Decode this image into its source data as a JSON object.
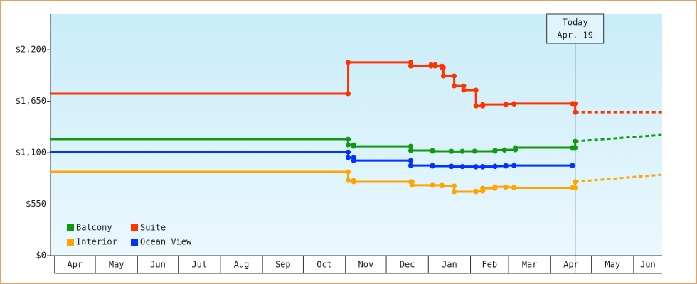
{
  "chart_data": {
    "type": "step-line",
    "xlim": [
      -3,
      447
    ],
    "xticks": [
      {
        "value": 0,
        "label": "Apr"
      },
      {
        "value": 30,
        "label": "May"
      },
      {
        "value": 61,
        "label": "Jun"
      },
      {
        "value": 91,
        "label": "Jul"
      },
      {
        "value": 122,
        "label": "Aug"
      },
      {
        "value": 153,
        "label": "Sep"
      },
      {
        "value": 183,
        "label": "Oct"
      },
      {
        "value": 214,
        "label": "Nov"
      },
      {
        "value": 244,
        "label": "Dec"
      },
      {
        "value": 275,
        "label": "Jan"
      },
      {
        "value": 306,
        "label": "Feb"
      },
      {
        "value": 334,
        "label": "Mar"
      },
      {
        "value": 365,
        "label": "Apr"
      },
      {
        "value": 395,
        "label": "May"
      },
      {
        "value": 426,
        "label": "Jun"
      }
    ],
    "ylim": [
      0,
      2580
    ],
    "yticks": [
      {
        "value": 0,
        "label": "$0"
      },
      {
        "value": 550,
        "label": "$550"
      },
      {
        "value": 1100,
        "label": "$1,100"
      },
      {
        "value": 1650,
        "label": "$1,650"
      },
      {
        "value": 2200,
        "label": "$2,200"
      }
    ],
    "legend": "bottom-left",
    "series": [
      {
        "name": "Balcony",
        "color": "#119911",
        "x": [
          -3,
          216,
          220,
          262,
          278,
          292,
          300,
          309,
          324,
          331,
          339,
          381,
          383
        ],
        "values": [
          1244,
          1183,
          1168,
          1123,
          1115,
          1113,
          1115,
          1115,
          1127,
          1130,
          1153,
          1153,
          1221
        ],
        "forecast": {
          "x": [
            383,
            447
          ],
          "values": [
            1221,
            1290
          ]
        }
      },
      {
        "name": "Suite",
        "color": "#ff3300",
        "x": [
          -3,
          216,
          262,
          277,
          280,
          285,
          286,
          294,
          301,
          310,
          315,
          332,
          338,
          381,
          383
        ],
        "values": [
          1730,
          2065,
          2025,
          2040,
          2025,
          2010,
          1920,
          1813,
          1768,
          1600,
          1615,
          1620,
          1625,
          1625,
          1532
        ],
        "forecast": {
          "x": [
            383,
            447
          ],
          "values": [
            1532,
            1532
          ]
        }
      },
      {
        "name": "Interior",
        "color": "#ffa500",
        "x": [
          -3,
          216,
          220,
          262,
          263,
          278,
          285,
          294,
          310,
          315,
          324,
          332,
          338,
          381,
          383
        ],
        "values": [
          895,
          803,
          789,
          789,
          752,
          752,
          745,
          683,
          690,
          720,
          735,
          730,
          725,
          725,
          789
        ],
        "forecast": {
          "x": [
            383,
            447
          ],
          "values": [
            789,
            865
          ]
        }
      },
      {
        "name": "Ocean View",
        "color": "#0033ff",
        "x": [
          -3,
          216,
          220,
          262,
          278,
          292,
          300,
          310,
          315,
          324,
          332,
          338,
          381
        ],
        "values": [
          1107,
          1047,
          1016,
          963,
          956,
          951,
          951,
          948,
          951,
          956,
          963,
          963,
          963
        ]
      }
    ],
    "annotations": [
      {
        "x": 383,
        "lines": [
          "Today",
          "Apr. 19"
        ]
      }
    ]
  }
}
